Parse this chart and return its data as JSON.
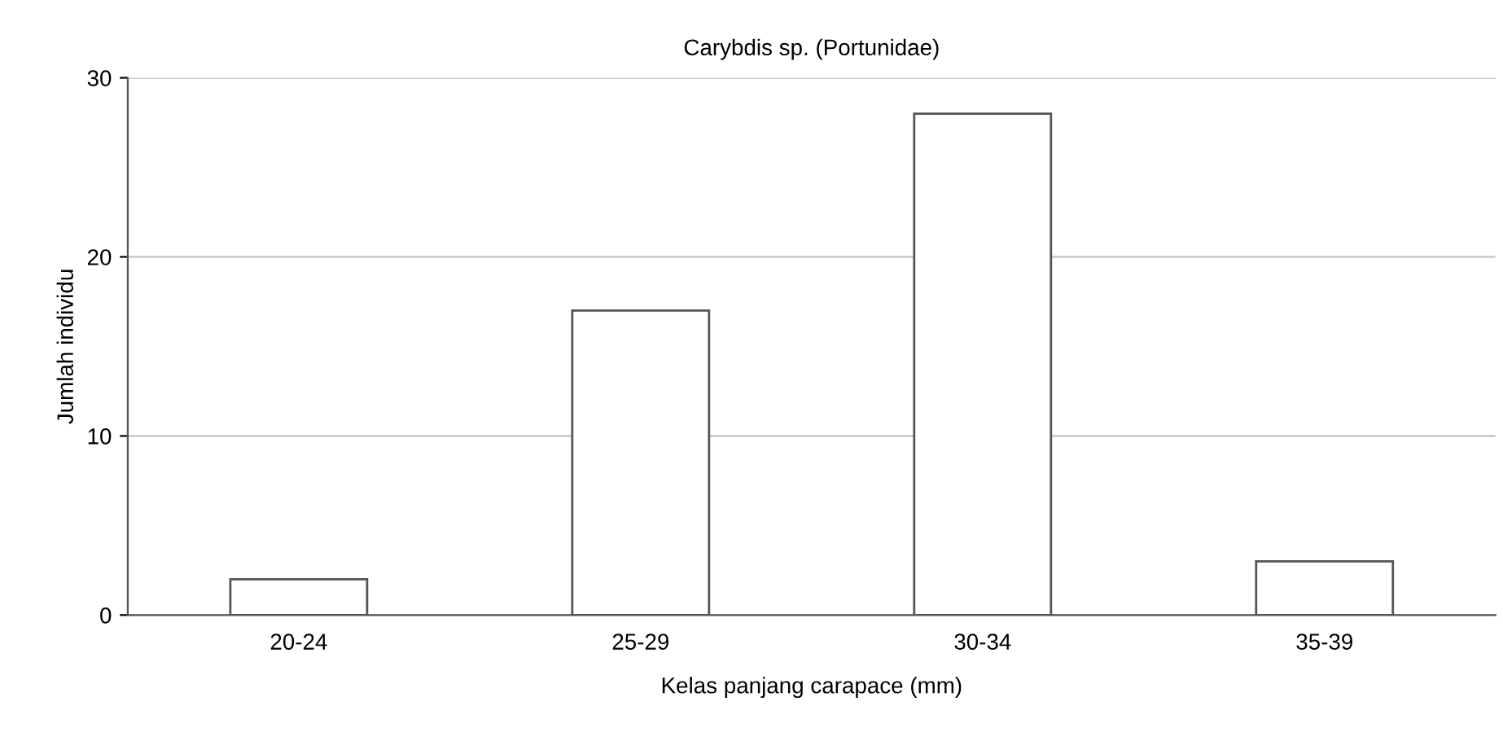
{
  "chart_data": {
    "type": "bar",
    "title": "Carybdis sp. (Portunidae)",
    "xlabel": "Kelas panjang carapace (mm)",
    "ylabel": "Jumlah individu",
    "categories": [
      "20-24",
      "25-29",
      "30-34",
      "35-39"
    ],
    "values": [
      2,
      17,
      28,
      3
    ],
    "color": "#ffffff",
    "ylim": [
      0,
      30
    ],
    "yticks": [
      0,
      10,
      20,
      30
    ],
    "grid": "y",
    "legend": false
  }
}
